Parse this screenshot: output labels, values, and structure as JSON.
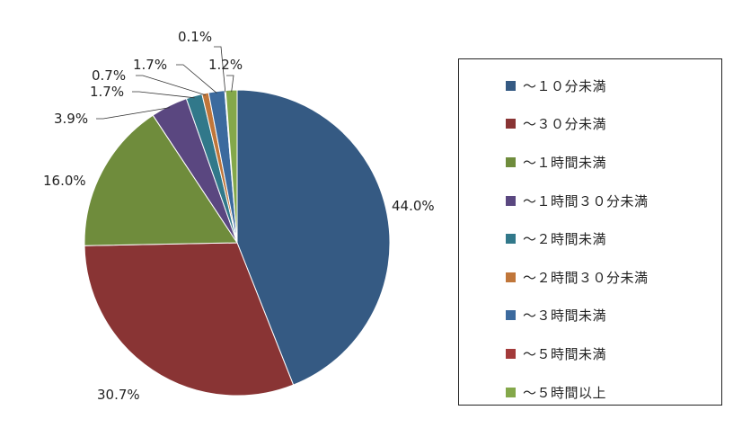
{
  "chart_data": {
    "type": "pie",
    "categories": [
      "～１０分未満",
      "～３０分未満",
      "～１時間未満",
      "～１時間３０分未満",
      "～２時間未満",
      "～２時間３０分未満",
      "～３時間未満",
      "～５時間未満",
      "～５時間以上"
    ],
    "values": [
      44.0,
      30.7,
      16.0,
      3.9,
      1.7,
      0.7,
      1.7,
      0.1,
      1.2
    ],
    "data_labels": [
      "44.0%",
      "30.7%",
      "16.0%",
      "3.9%",
      "1.7%",
      "0.7%",
      "1.7%",
      "0.1%",
      "1.2%"
    ],
    "colors": [
      "#355a83",
      "#893434",
      "#6f8c3c",
      "#5a4780",
      "#31788a",
      "#c0763a",
      "#3c6a9e",
      "#a33a3a",
      "#84a84a"
    ],
    "start_angle_deg": 0,
    "direction": "clockwise",
    "legend_position": "right"
  }
}
